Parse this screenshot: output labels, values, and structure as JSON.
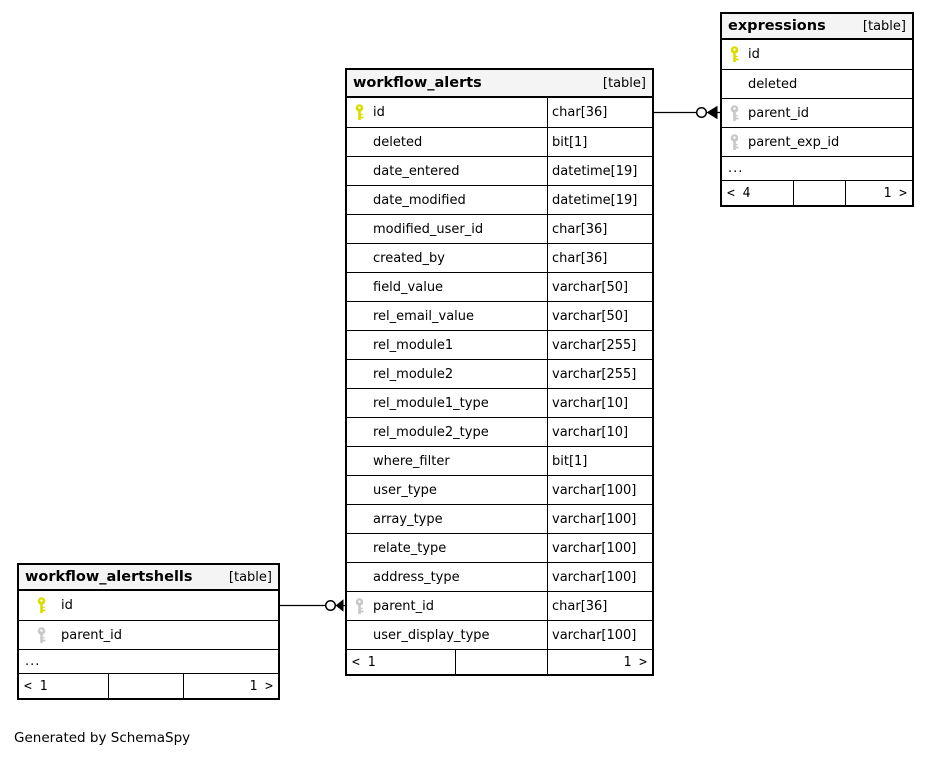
{
  "page": {
    "note": "Generated by SchemaSpy"
  },
  "colors": {
    "primary_key": "#dcdc00",
    "foreign_key": "#c8c8c8",
    "header_bg": "#f4f4f4",
    "border": "#000000"
  },
  "tables": [
    {
      "id": "workflow_alerts",
      "title": "workflow_alerts",
      "tag": "[table]",
      "has_type_column": true,
      "columns": [
        {
          "name": "id",
          "type": "char[36]",
          "key": "primary"
        },
        {
          "name": "deleted",
          "type": "bit[1]",
          "key": "none"
        },
        {
          "name": "date_entered",
          "type": "datetime[19]",
          "key": "none"
        },
        {
          "name": "date_modified",
          "type": "datetime[19]",
          "key": "none"
        },
        {
          "name": "modified_user_id",
          "type": "char[36]",
          "key": "none"
        },
        {
          "name": "created_by",
          "type": "char[36]",
          "key": "none"
        },
        {
          "name": "field_value",
          "type": "varchar[50]",
          "key": "none"
        },
        {
          "name": "rel_email_value",
          "type": "varchar[50]",
          "key": "none"
        },
        {
          "name": "rel_module1",
          "type": "varchar[255]",
          "key": "none"
        },
        {
          "name": "rel_module2",
          "type": "varchar[255]",
          "key": "none"
        },
        {
          "name": "rel_module1_type",
          "type": "varchar[10]",
          "key": "none"
        },
        {
          "name": "rel_module2_type",
          "type": "varchar[10]",
          "key": "none"
        },
        {
          "name": "where_filter",
          "type": "bit[1]",
          "key": "none"
        },
        {
          "name": "user_type",
          "type": "varchar[100]",
          "key": "none"
        },
        {
          "name": "array_type",
          "type": "varchar[100]",
          "key": "none"
        },
        {
          "name": "relate_type",
          "type": "varchar[100]",
          "key": "none"
        },
        {
          "name": "address_type",
          "type": "varchar[100]",
          "key": "none"
        },
        {
          "name": "parent_id",
          "type": "char[36]",
          "key": "foreign"
        },
        {
          "name": "user_display_type",
          "type": "varchar[100]",
          "key": "none"
        }
      ],
      "footer": {
        "left": "< 1",
        "middle": "",
        "right": "1 >"
      }
    },
    {
      "id": "expressions",
      "title": "expressions",
      "tag": "[table]",
      "has_type_column": false,
      "columns": [
        {
          "name": "id",
          "type": "",
          "key": "primary"
        },
        {
          "name": "deleted",
          "type": "",
          "key": "none"
        },
        {
          "name": "parent_id",
          "type": "",
          "key": "foreign"
        },
        {
          "name": "parent_exp_id",
          "type": "",
          "key": "foreign"
        }
      ],
      "ellipsis": "...",
      "footer": {
        "left": "< 4",
        "middle": "",
        "right": "1 >"
      }
    },
    {
      "id": "workflow_alertshells",
      "title": "workflow_alertshells",
      "tag": "[table]",
      "has_type_column": false,
      "columns": [
        {
          "name": "id",
          "type": "",
          "key": "primary"
        },
        {
          "name": "parent_id",
          "type": "",
          "key": "foreign"
        }
      ],
      "ellipsis": "...",
      "footer": {
        "left": "< 1",
        "middle": "",
        "right": "1 >"
      }
    }
  ],
  "relationships": [
    {
      "from_table": "workflow_alerts",
      "from_column": "id",
      "to_table": "expressions",
      "to_column": "parent_id"
    },
    {
      "from_table": "workflow_alertshells",
      "from_column": "id",
      "to_table": "workflow_alerts",
      "to_column": "parent_id"
    }
  ]
}
